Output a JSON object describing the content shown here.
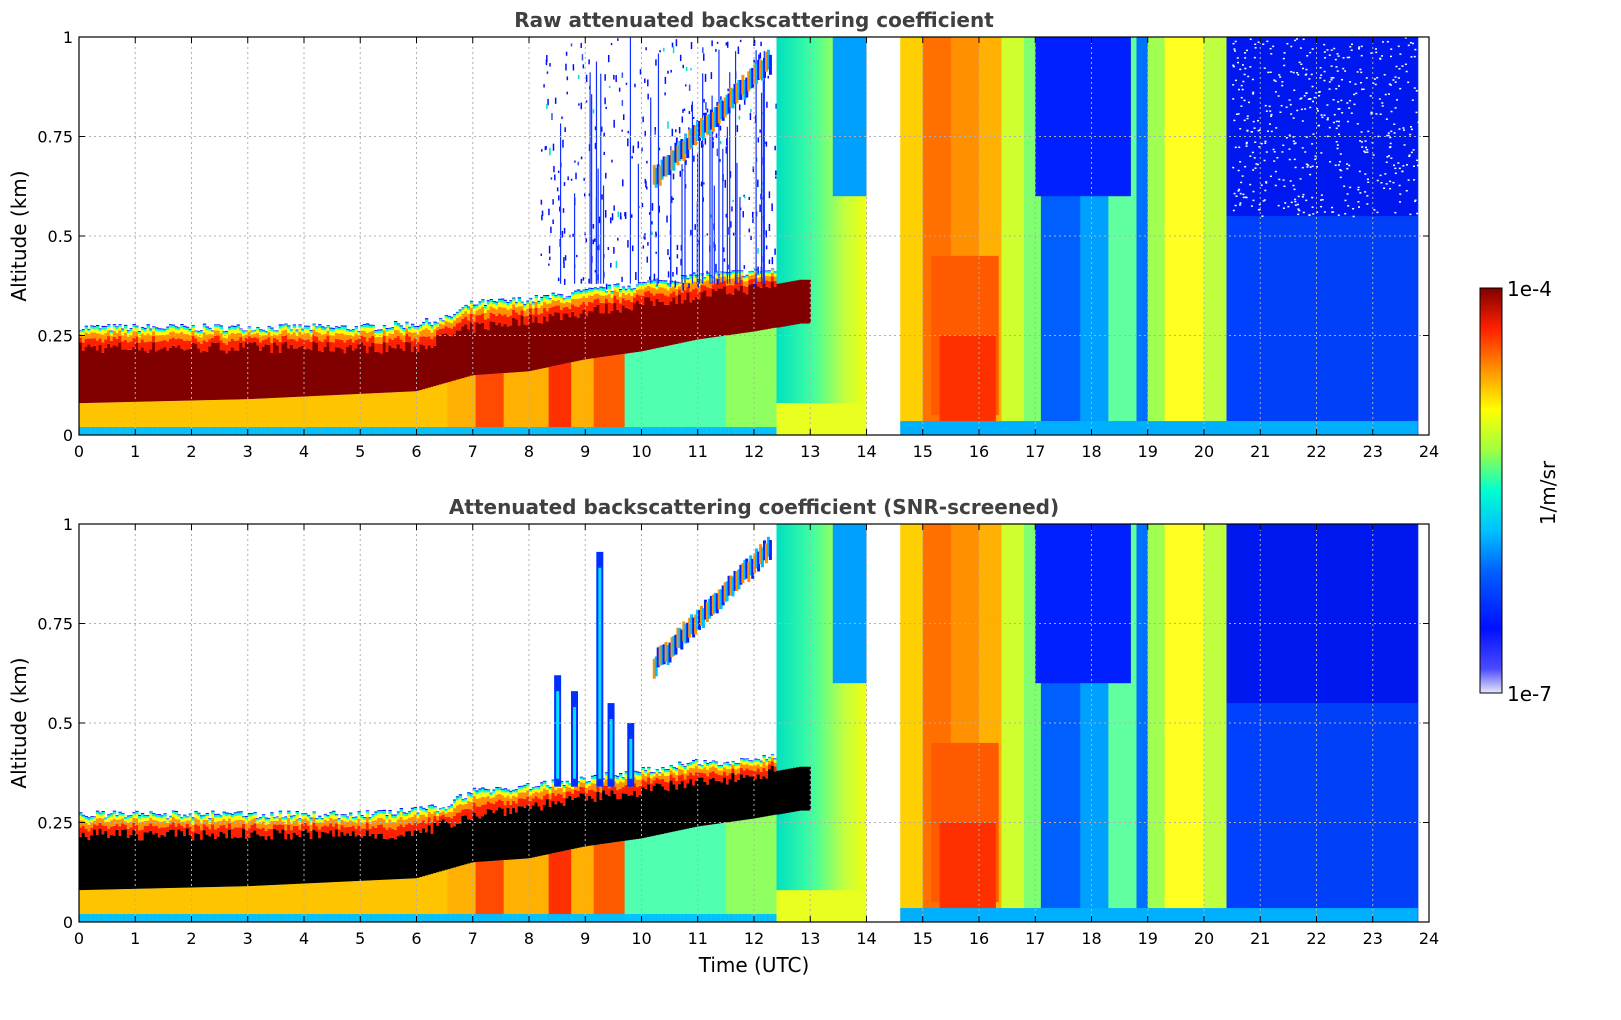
{
  "chart_data": [
    {
      "type": "heatmap",
      "title": "Raw attenuated backscattering coefficient",
      "xlabel": "",
      "ylabel": "Altitude (km)",
      "xlim": [
        0,
        24
      ],
      "ylim": [
        0,
        1
      ],
      "xticks": [
        "0",
        "1",
        "2",
        "3",
        "4",
        "5",
        "6",
        "7",
        "8",
        "9",
        "10",
        "11",
        "12",
        "13",
        "14",
        "15",
        "16",
        "17",
        "18",
        "19",
        "20",
        "21",
        "22",
        "23",
        "24"
      ],
      "yticks": [
        "0",
        "0.25",
        "0.5",
        "0.75",
        "1"
      ],
      "grid": true,
      "layer_top_km": [
        [
          0,
          0.27
        ],
        [
          1,
          0.27
        ],
        [
          2,
          0.27
        ],
        [
          3,
          0.27
        ],
        [
          4,
          0.27
        ],
        [
          5,
          0.27
        ],
        [
          6,
          0.28
        ],
        [
          6.5,
          0.29
        ],
        [
          7,
          0.33
        ],
        [
          8,
          0.34
        ],
        [
          9,
          0.36
        ],
        [
          10,
          0.38
        ],
        [
          11,
          0.4
        ],
        [
          12,
          0.41
        ],
        [
          12.8,
          0.42
        ]
      ],
      "layer_core_km": [
        [
          0,
          0.08,
          0.22
        ],
        [
          3,
          0.09,
          0.22
        ],
        [
          6,
          0.11,
          0.22
        ],
        [
          7,
          0.15,
          0.27
        ],
        [
          8,
          0.16,
          0.29
        ],
        [
          9,
          0.19,
          0.31
        ],
        [
          10,
          0.21,
          0.33
        ],
        [
          11,
          0.24,
          0.35
        ],
        [
          12,
          0.26,
          0.37
        ],
        [
          12.8,
          0.28,
          0.39
        ]
      ],
      "data_gap_utc": [
        14.0,
        14.6
      ],
      "end_of_data_utc": 23.8
    },
    {
      "type": "heatmap",
      "title": "Attenuated backscattering coefficient (SNR-screened)",
      "xlabel": "Time (UTC)",
      "ylabel": "Altitude (km)",
      "xlim": [
        0,
        24
      ],
      "ylim": [
        0,
        1
      ],
      "xticks": [
        "0",
        "1",
        "2",
        "3",
        "4",
        "5",
        "6",
        "7",
        "8",
        "9",
        "10",
        "11",
        "12",
        "13",
        "14",
        "15",
        "16",
        "17",
        "18",
        "19",
        "20",
        "21",
        "22",
        "23",
        "24"
      ],
      "yticks": [
        "0",
        "0.25",
        "0.5",
        "0.75",
        "1"
      ],
      "grid": true,
      "saturated_color": "#000000",
      "data_gap_utc": [
        14.0,
        14.6
      ],
      "end_of_data_utc": 23.8
    }
  ],
  "colorbar": {
    "max_label": "1e-4",
    "min_label": "1e-7",
    "unit_label": "1/m/sr",
    "colors": [
      "#e8e8f8",
      "#0000ff",
      "#00b0ff",
      "#00ffd0",
      "#a0ff40",
      "#ffff00",
      "#ff9000",
      "#ff2000",
      "#800000"
    ]
  }
}
